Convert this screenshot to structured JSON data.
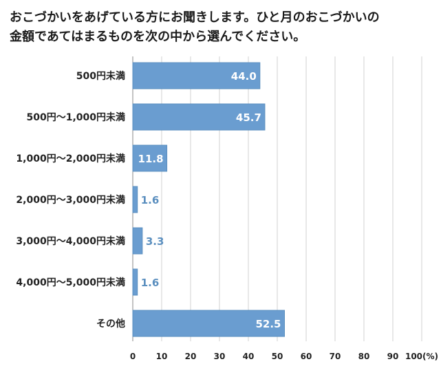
{
  "title_lines": [
    "おこづかいをあげている方にお聞きします。ひと月のおこづかいの",
    "金額であてはまるものを次の中から選んでください。"
  ],
  "colors": {
    "bar": "#6a9dd0",
    "bar_stroke": "#5b8fbf",
    "grid": "#d0d0d0",
    "axis": "#888888",
    "label_outside": "#5b8fbf"
  },
  "chart_data": {
    "type": "bar",
    "orientation": "horizontal",
    "title": "おこづかいをあげている方にお聞きします。ひと月のおこづかいの金額であてはまるものを次の中から選んでください。",
    "categories": [
      "500円未満",
      "500円〜1,000円未満",
      "1,000円〜2,000円未満",
      "2,000円〜3,000円未満",
      "3,000円〜4,000円未満",
      "4,000円〜5,000円未満",
      "その他"
    ],
    "values": [
      44.0,
      45.7,
      11.8,
      1.6,
      3.3,
      1.6,
      52.5
    ],
    "value_labels": [
      "44.0",
      "45.7",
      "11.8",
      "1.6",
      "3.3",
      "1.6",
      "52.5"
    ],
    "xlim": [
      0,
      100
    ],
    "xticks": [
      "0",
      "10",
      "20",
      "30",
      "40",
      "50",
      "60",
      "70",
      "80",
      "90",
      "100(%)"
    ],
    "xlabel": "",
    "ylabel": "",
    "grid": true
  }
}
